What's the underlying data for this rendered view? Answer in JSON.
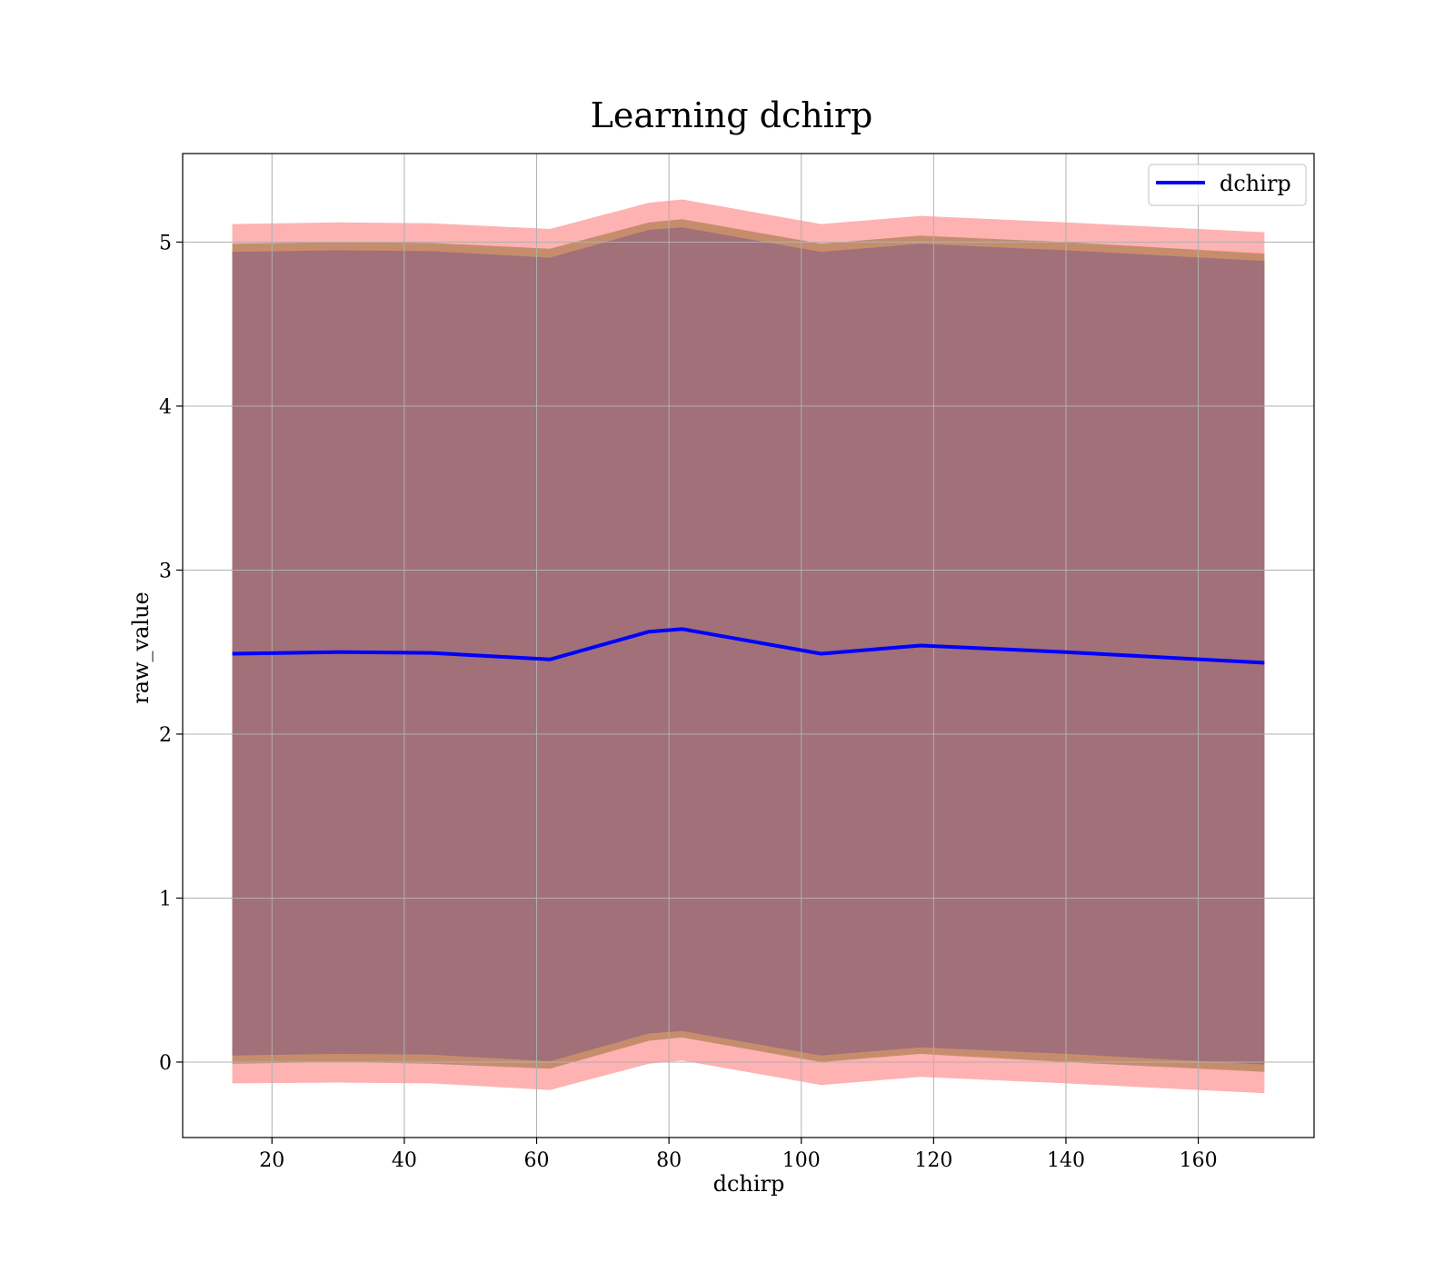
{
  "chart_data": {
    "type": "line",
    "title": "Learning dchirp",
    "xlabel": "dchirp",
    "ylabel": "raw_value",
    "xlim": [
      6.5,
      177.5
    ],
    "ylim": [
      -0.46,
      5.54
    ],
    "xticks": [
      20,
      40,
      60,
      80,
      100,
      120,
      140,
      160
    ],
    "yticks": [
      0,
      1,
      2,
      3,
      4,
      5
    ],
    "grid": true,
    "legend_position": "top-right",
    "x": [
      14,
      30,
      44,
      62,
      77,
      82,
      103,
      118,
      140,
      170
    ],
    "series": [
      {
        "name": "dchirp",
        "color": "#0000ff",
        "values": [
          2.49,
          2.5,
          2.495,
          2.455,
          2.625,
          2.64,
          2.49,
          2.54,
          2.5,
          2.435
        ]
      }
    ],
    "bands": [
      {
        "color": "#ff6666",
        "opacity": 0.5,
        "lower": [
          -0.13,
          -0.125,
          -0.13,
          -0.17,
          -0.01,
          0.01,
          -0.14,
          -0.09,
          -0.13,
          -0.19
        ],
        "upper": [
          5.11,
          5.12,
          5.115,
          5.08,
          5.24,
          5.26,
          5.11,
          5.16,
          5.12,
          5.06
        ]
      },
      {
        "color": "#a0743f",
        "opacity": 0.6,
        "lower": [
          -0.01,
          0.0,
          -0.01,
          -0.04,
          0.13,
          0.15,
          0.0,
          0.05,
          0.0,
          -0.06
        ],
        "upper": [
          4.99,
          5.0,
          4.995,
          4.96,
          5.12,
          5.14,
          4.99,
          5.04,
          5.0,
          4.93
        ]
      },
      {
        "color": "#a17079",
        "opacity": 1.0,
        "lower": [
          0.04,
          0.05,
          0.045,
          0.005,
          0.175,
          0.19,
          0.04,
          0.09,
          0.05,
          -0.015
        ],
        "upper": [
          4.94,
          4.95,
          4.945,
          4.905,
          5.075,
          5.09,
          4.94,
          4.99,
          4.95,
          4.885
        ]
      }
    ]
  }
}
